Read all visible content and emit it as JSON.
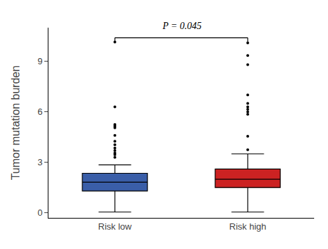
{
  "chart_data": {
    "type": "box",
    "categories": [
      "Risk low",
      "Risk high"
    ],
    "colors": [
      "#3A5EA8",
      "#CC2222"
    ],
    "boxes": [
      {
        "q1": 1.3,
        "median": 1.82,
        "q3": 2.35,
        "whisker_low": 0.05,
        "whisker_high": 2.85,
        "outliers": [
          3.3,
          3.45,
          3.55,
          3.7,
          3.85,
          4.05,
          4.25,
          4.6,
          5.05,
          5.15,
          5.25,
          6.3,
          10.15
        ]
      },
      {
        "q1": 1.5,
        "median": 2.0,
        "q3": 2.6,
        "whisker_low": 0.05,
        "whisker_high": 3.5,
        "outliers": [
          3.75,
          4.55,
          5.85,
          6.0,
          6.15,
          6.3,
          6.5,
          7.0,
          8.8,
          9.35,
          10.1
        ]
      }
    ],
    "ylabel": "Tumor mutation burden",
    "ylim": [
      -0.3,
      11.0
    ],
    "yticks": [
      0,
      3,
      6,
      9
    ],
    "grid": false,
    "annotations": [
      {
        "text": "P = 0.045",
        "y": 10.72,
        "from": "Risk low",
        "to": "Risk high",
        "bracket_y": 10.4,
        "bracket_drop": 0.22
      }
    ]
  }
}
